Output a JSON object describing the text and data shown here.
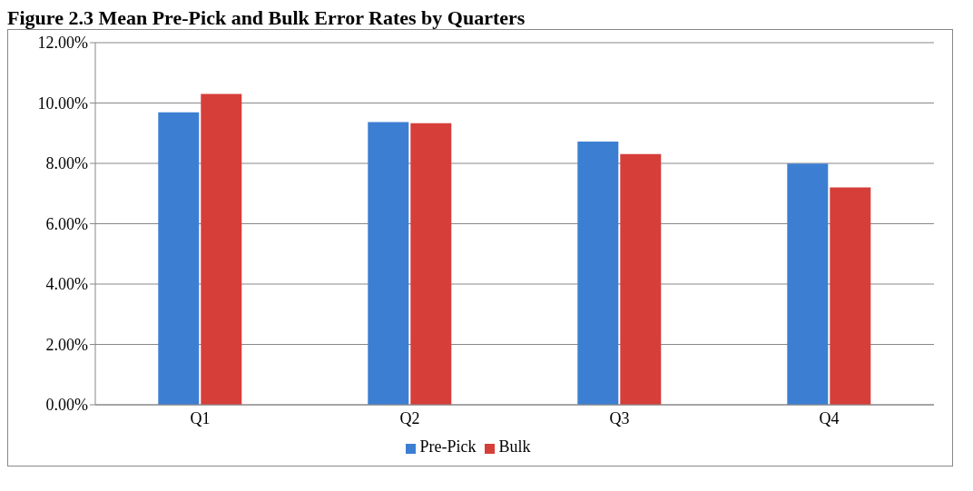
{
  "chart_data": {
    "type": "bar",
    "title": "Figure 2.3 Mean Pre-Pick and Bulk Error Rates by Quarters",
    "categories": [
      "Q1",
      "Q2",
      "Q3",
      "Q4"
    ],
    "series": [
      {
        "name": "Pre-Pick",
        "color": "#3c7fd2",
        "values": [
          9.69,
          9.37,
          8.72,
          7.99
        ]
      },
      {
        "name": "Bulk",
        "color": "#d63e3a",
        "values": [
          10.3,
          9.33,
          8.31,
          7.2
        ]
      }
    ],
    "ylim": [
      0,
      12
    ],
    "yticks": [
      {
        "value": 0,
        "label": "0.00%"
      },
      {
        "value": 2,
        "label": "2.00%"
      },
      {
        "value": 4,
        "label": "4.00%"
      },
      {
        "value": 6,
        "label": "6.00%"
      },
      {
        "value": 8,
        "label": "8.00%"
      },
      {
        "value": 10,
        "label": "10.00%"
      },
      {
        "value": 12,
        "label": "12.00%"
      }
    ],
    "grid": "y",
    "legend": "bottom"
  }
}
